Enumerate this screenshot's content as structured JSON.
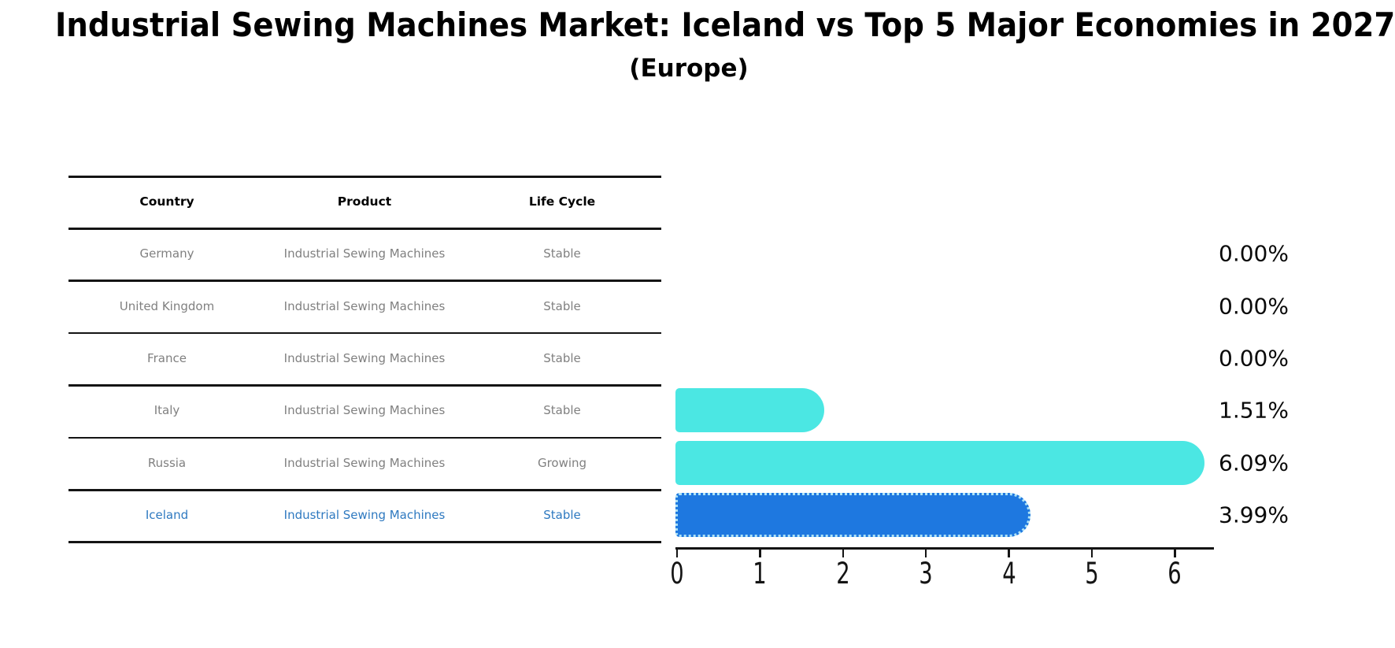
{
  "title": "Industrial Sewing Machines Market: Iceland vs Top 5 Major Economies in 2027",
  "subtitle": "(Europe)",
  "table": {
    "headers": [
      "Country",
      "Product",
      "Life Cycle"
    ],
    "rows": [
      {
        "country": "Germany",
        "product": "Industrial Sewing Machines",
        "life_cycle": "Stable",
        "share_label": "0.00%",
        "highlighted": false
      },
      {
        "country": "United Kingdom",
        "product": "Industrial Sewing Machines",
        "life_cycle": "Stable",
        "share_label": "0.00%",
        "highlighted": false
      },
      {
        "country": "France",
        "product": "Industrial Sewing Machines",
        "life_cycle": "Stable",
        "share_label": "0.00%",
        "highlighted": false
      },
      {
        "country": "Italy",
        "product": "Industrial Sewing Machines",
        "life_cycle": "Stable",
        "share_label": "1.51%",
        "highlighted": false
      },
      {
        "country": "Russia",
        "product": "Industrial Sewing Machines",
        "life_cycle": "Growing",
        "share_label": "6.09%",
        "highlighted": false
      },
      {
        "country": "Iceland",
        "product": "Industrial Sewing Machines",
        "life_cycle": "Stable",
        "share_label": "3.99%",
        "highlighted": true
      }
    ]
  },
  "chart_data": {
    "type": "bar",
    "orientation": "horizontal",
    "title": "Industrial Sewing Machines Market: Iceland vs Top 5 Major Economies in 2027 (Europe)",
    "categories": [
      "Germany",
      "United Kingdom",
      "France",
      "Italy",
      "Russia",
      "Iceland"
    ],
    "values": [
      0.0,
      0.0,
      0.0,
      1.51,
      6.09,
      3.99
    ],
    "value_labels": [
      "0.00%",
      "0.00%",
      "0.00%",
      "1.51%",
      "6.09%",
      "3.99%"
    ],
    "xlabel": "",
    "ylabel": "",
    "xticks": [
      0,
      1,
      2,
      3,
      4,
      5,
      6
    ],
    "xlim": [
      0,
      6.47
    ],
    "grid": false,
    "legend": "none",
    "highlight_category": "Iceland"
  },
  "colors": {
    "bar_default": "#4BE7E3",
    "bar_highlight": "#1E78E0",
    "highlight_border": "#AEE3F6",
    "highlight_text": "#2E79C0",
    "row_text": "#808080",
    "header_text": "#000000",
    "axis_color": "#141414"
  }
}
